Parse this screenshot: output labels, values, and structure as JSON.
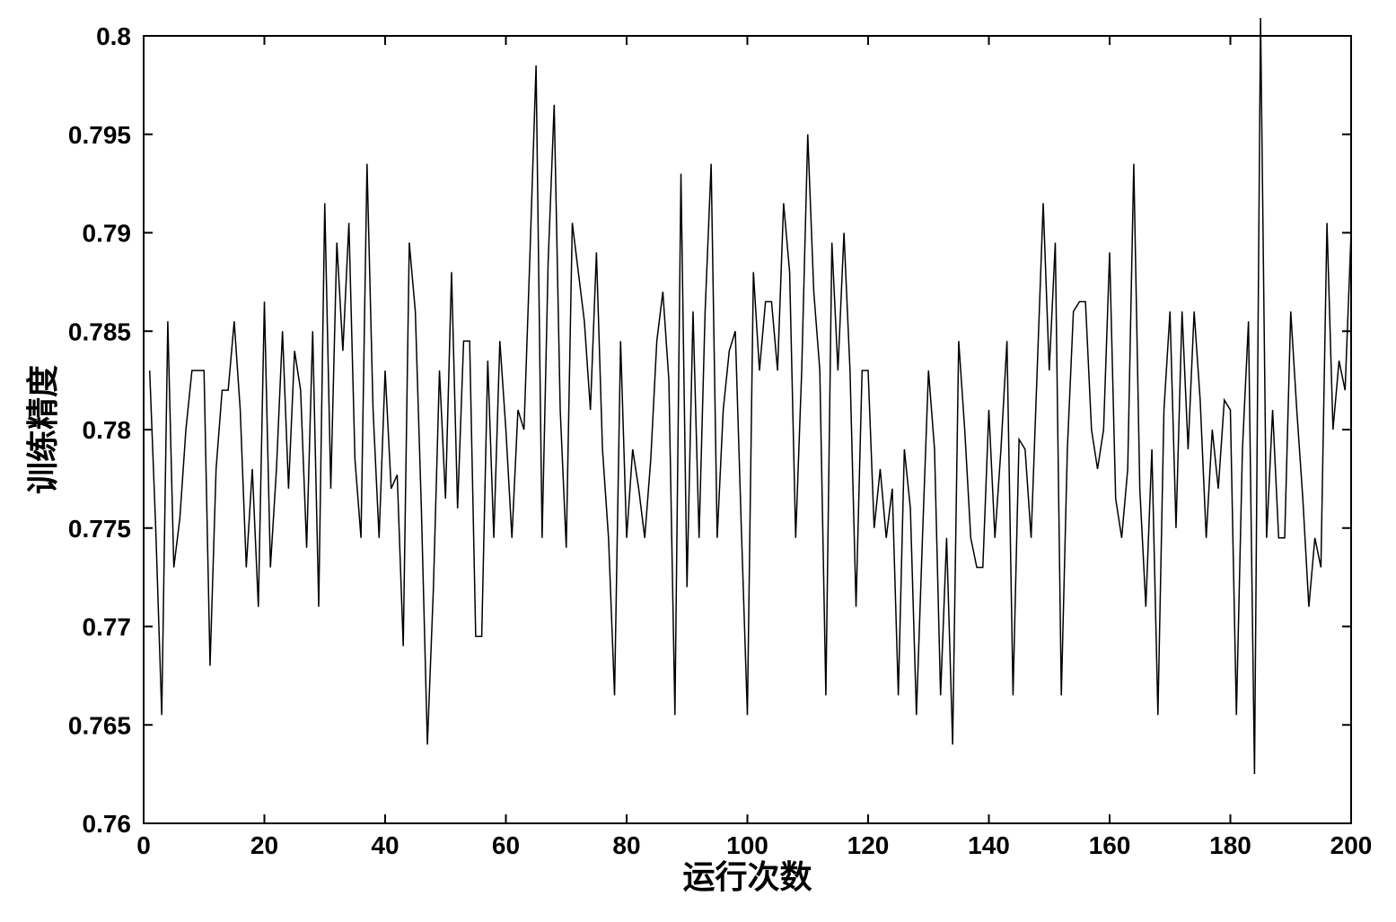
{
  "chart": {
    "type": "line",
    "xlabel": "运行次数",
    "ylabel": "训练精度",
    "xlim": [
      0,
      200
    ],
    "ylim": [
      0.76,
      0.8
    ],
    "xticks": [
      0,
      20,
      40,
      60,
      80,
      100,
      120,
      140,
      160,
      180,
      200
    ],
    "yticks": [
      0.76,
      0.765,
      0.77,
      0.775,
      0.78,
      0.785,
      0.79,
      0.795,
      0.8
    ],
    "background_color": "#ffffff",
    "border_color": "#000000",
    "line_color": "#000000",
    "line_width": 1.5,
    "tick_fontsize": 28,
    "label_fontsize": 36,
    "data": {
      "x": [
        1,
        2,
        3,
        4,
        5,
        6,
        7,
        8,
        9,
        10,
        11,
        12,
        13,
        14,
        15,
        16,
        17,
        18,
        19,
        20,
        21,
        22,
        23,
        24,
        25,
        26,
        27,
        28,
        29,
        30,
        31,
        32,
        33,
        34,
        35,
        36,
        37,
        38,
        39,
        40,
        41,
        42,
        43,
        44,
        45,
        46,
        47,
        48,
        49,
        50,
        51,
        52,
        53,
        54,
        55,
        56,
        57,
        58,
        59,
        60,
        61,
        62,
        63,
        64,
        65,
        66,
        67,
        68,
        69,
        70,
        71,
        72,
        73,
        74,
        75,
        76,
        77,
        78,
        79,
        80,
        81,
        82,
        83,
        84,
        85,
        86,
        87,
        88,
        89,
        90,
        91,
        92,
        93,
        94,
        95,
        96,
        97,
        98,
        99,
        100,
        101,
        102,
        103,
        104,
        105,
        106,
        107,
        108,
        109,
        110,
        111,
        112,
        113,
        114,
        115,
        116,
        117,
        118,
        119,
        120,
        121,
        122,
        123,
        124,
        125,
        126,
        127,
        128,
        129,
        130,
        131,
        132,
        133,
        134,
        135,
        136,
        137,
        138,
        139,
        140,
        141,
        142,
        143,
        144,
        145,
        146,
        147,
        148,
        149,
        150,
        151,
        152,
        153,
        154,
        155,
        156,
        157,
        158,
        159,
        160,
        161,
        162,
        163,
        164,
        165,
        166,
        167,
        168,
        169,
        170,
        171,
        172,
        173,
        174,
        175,
        176,
        177,
        178,
        179,
        180,
        181,
        182,
        183,
        184,
        185,
        186,
        187,
        188,
        189,
        190,
        191,
        192,
        193,
        194,
        195,
        196,
        197,
        198,
        199,
        200
      ],
      "y": [
        0.783,
        0.775,
        0.7655,
        0.7855,
        0.773,
        0.7755,
        0.78,
        0.783,
        0.783,
        0.783,
        0.768,
        0.778,
        0.782,
        0.782,
        0.7855,
        0.781,
        0.773,
        0.778,
        0.771,
        0.7865,
        0.773,
        0.778,
        0.785,
        0.777,
        0.784,
        0.782,
        0.774,
        0.785,
        0.771,
        0.7915,
        0.777,
        0.7895,
        0.784,
        0.7905,
        0.7785,
        0.7745,
        0.7935,
        0.781,
        0.7745,
        0.783,
        0.777,
        0.7777,
        0.769,
        0.7895,
        0.786,
        0.776,
        0.764,
        0.772,
        0.783,
        0.7765,
        0.788,
        0.776,
        0.7845,
        0.7845,
        0.7695,
        0.7695,
        0.7835,
        0.7745,
        0.7845,
        0.78,
        0.7745,
        0.781,
        0.78,
        0.789,
        0.7985,
        0.7745,
        0.7885,
        0.7965,
        0.781,
        0.774,
        0.7905,
        0.788,
        0.7855,
        0.781,
        0.789,
        0.779,
        0.7745,
        0.7665,
        0.7845,
        0.7745,
        0.779,
        0.777,
        0.7745,
        0.7785,
        0.7845,
        0.787,
        0.7825,
        0.7655,
        0.793,
        0.772,
        0.786,
        0.7745,
        0.786,
        0.7935,
        0.7745,
        0.781,
        0.784,
        0.785,
        0.775,
        0.7655,
        0.788,
        0.783,
        0.7865,
        0.7865,
        0.783,
        0.7915,
        0.788,
        0.7745,
        0.783,
        0.795,
        0.787,
        0.783,
        0.7665,
        0.7895,
        0.783,
        0.79,
        0.783,
        0.771,
        0.783,
        0.783,
        0.775,
        0.778,
        0.7745,
        0.777,
        0.7665,
        0.779,
        0.776,
        0.7655,
        0.7745,
        0.783,
        0.779,
        0.7665,
        0.7745,
        0.764,
        0.7845,
        0.78,
        0.7745,
        0.773,
        0.773,
        0.781,
        0.7745,
        0.779,
        0.7845,
        0.7665,
        0.7795,
        0.779,
        0.7745,
        0.783,
        0.7915,
        0.783,
        0.7895,
        0.7665,
        0.779,
        0.786,
        0.7865,
        0.7865,
        0.78,
        0.778,
        0.78,
        0.789,
        0.7765,
        0.7745,
        0.778,
        0.7935,
        0.777,
        0.771,
        0.779,
        0.7655,
        0.781,
        0.786,
        0.775,
        0.786,
        0.779,
        0.786,
        0.7815,
        0.7745,
        0.78,
        0.777,
        0.7815,
        0.781,
        0.7655,
        0.779,
        0.7855,
        0.7625,
        0.801,
        0.7745,
        0.781,
        0.7745,
        0.7745,
        0.786,
        0.781,
        0.7765,
        0.771,
        0.7745,
        0.773,
        0.7905,
        0.78,
        0.7835,
        0.782,
        0.79
      ]
    }
  }
}
